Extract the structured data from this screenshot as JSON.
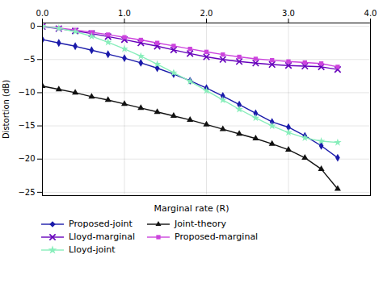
{
  "chart_data": {
    "type": "line",
    "xlabel": "Marginal rate (R)",
    "ylabel": "Distortion (dB)",
    "x": [
      0.0,
      0.2,
      0.4,
      0.6,
      0.8,
      1.0,
      1.2,
      1.4,
      1.6,
      1.8,
      2.0,
      2.2,
      2.4,
      2.6,
      2.8,
      3.0,
      3.2,
      3.4,
      3.6
    ],
    "xlim": [
      0,
      4
    ],
    "xticks": [
      0,
      1,
      2,
      3,
      4
    ],
    "ylim": [
      -25.5,
      0.5
    ],
    "yticks": [
      0,
      -5,
      -10,
      -15,
      -20,
      -25
    ],
    "grid": true,
    "legend": "bottom",
    "series": [
      {
        "name": "Proposed-joint",
        "color": "#1a1aaa",
        "marker": "diamond",
        "values": [
          -2.0,
          -2.5,
          -3.0,
          -3.6,
          -4.2,
          -4.8,
          -5.5,
          -6.3,
          -7.2,
          -8.2,
          -9.3,
          -10.5,
          -11.8,
          -13.1,
          -14.4,
          -15.2,
          -16.5,
          -18.0,
          -19.8
        ]
      },
      {
        "name": "Joint-theory",
        "color": "#111111",
        "marker": "triangle",
        "values": [
          -9.0,
          -9.5,
          -10.0,
          -10.6,
          -11.1,
          -11.7,
          -12.3,
          -12.9,
          -13.5,
          -14.1,
          -14.8,
          -15.5,
          -16.2,
          -16.9,
          -17.7,
          -18.6,
          -19.8,
          -21.5,
          -24.5
        ]
      },
      {
        "name": "Lloyd-marginal",
        "color": "#6600bb",
        "marker": "x",
        "values": [
          -0.05,
          -0.35,
          -0.7,
          -1.1,
          -1.55,
          -2.0,
          -2.5,
          -3.0,
          -3.55,
          -4.1,
          -4.6,
          -5.0,
          -5.3,
          -5.55,
          -5.75,
          -5.9,
          -6.0,
          -6.1,
          -6.5
        ]
      },
      {
        "name": "Proposed-marginal",
        "color": "#cc44dd",
        "marker": "square",
        "values": [
          0.0,
          -0.25,
          -0.55,
          -0.9,
          -1.25,
          -1.65,
          -2.05,
          -2.5,
          -2.95,
          -3.4,
          -3.85,
          -4.25,
          -4.6,
          -4.9,
          -5.1,
          -5.3,
          -5.45,
          -5.6,
          -6.1
        ]
      },
      {
        "name": "Lloyd-joint",
        "color": "#88eebb",
        "marker": "star",
        "values": [
          0.0,
          -0.3,
          -0.8,
          -1.5,
          -2.4,
          -3.4,
          -4.5,
          -5.7,
          -7.0,
          -8.3,
          -9.7,
          -11.1,
          -12.5,
          -13.8,
          -15.0,
          -16.0,
          -16.8,
          -17.3,
          -17.5
        ]
      }
    ]
  }
}
